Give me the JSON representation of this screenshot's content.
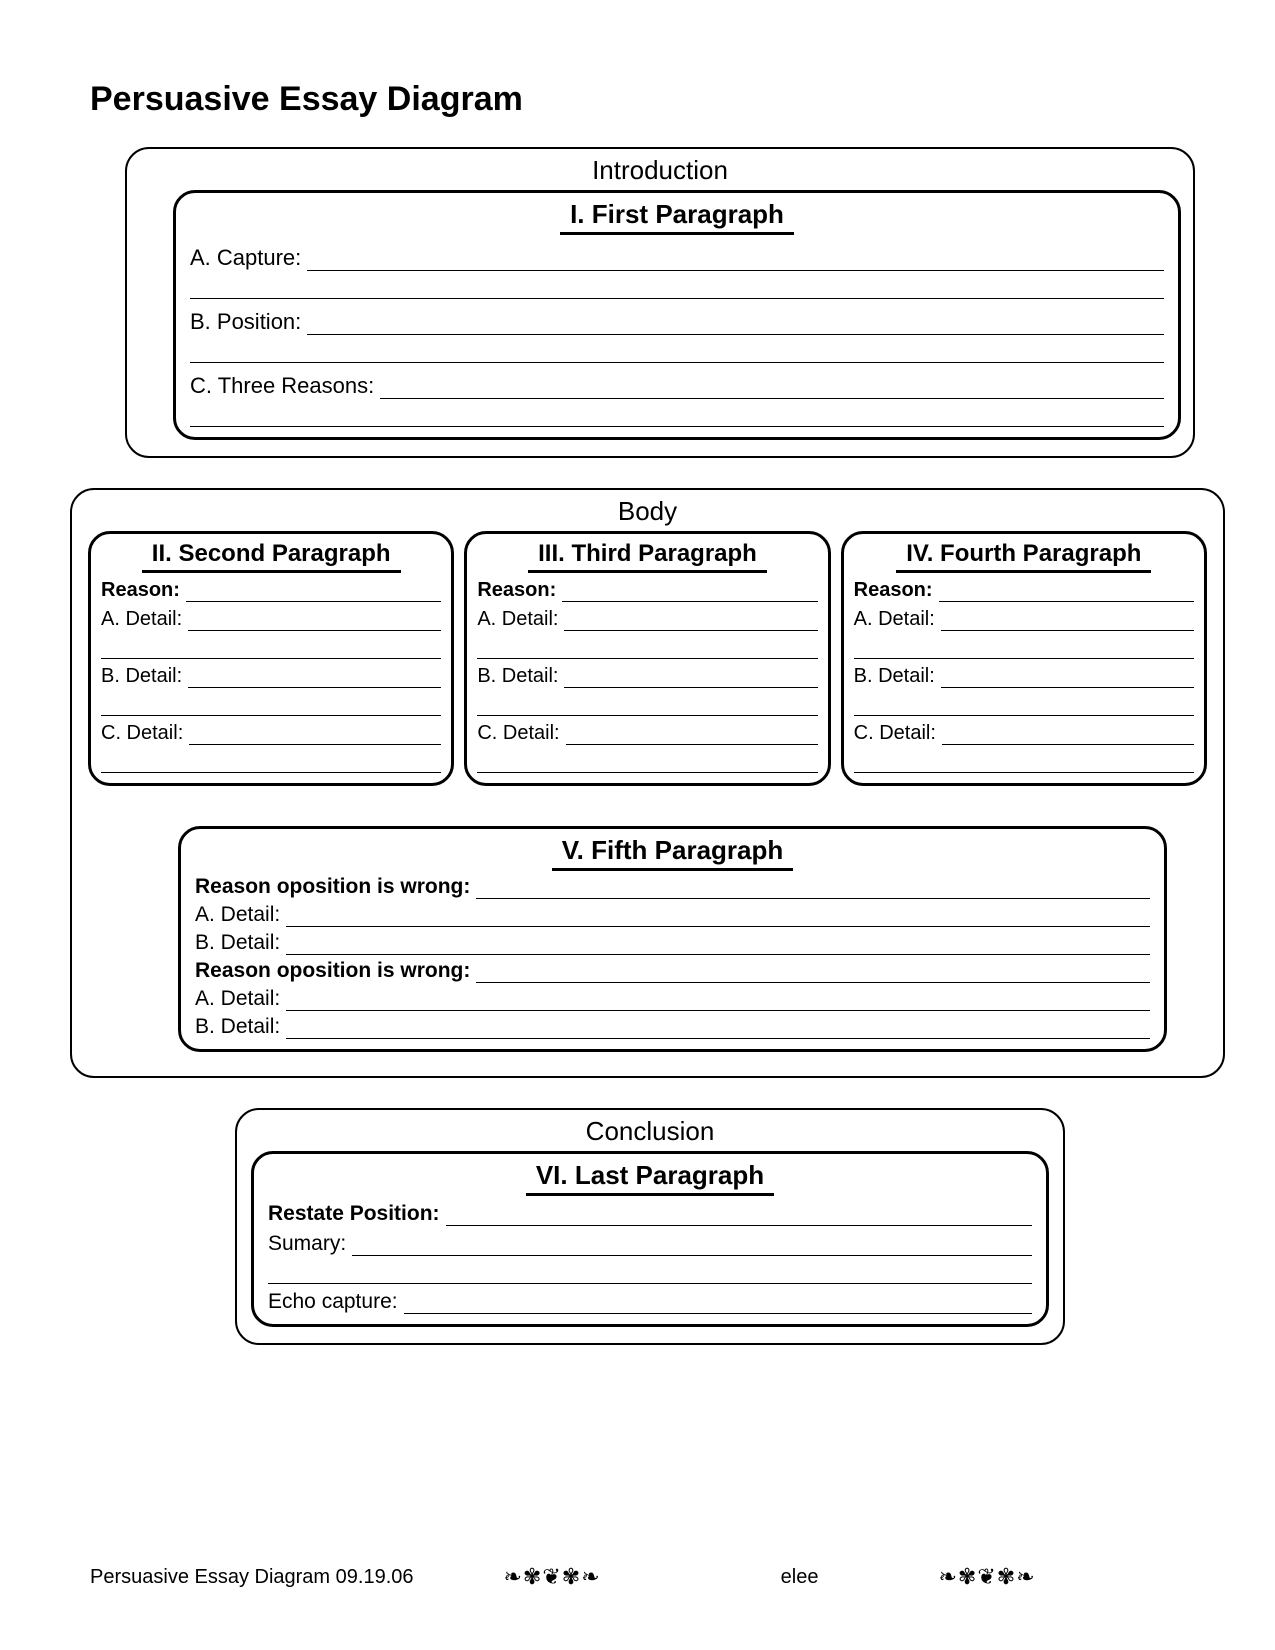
{
  "page_title": "Persuasive Essay Diagram",
  "font_family": "Comic Sans MS",
  "colors": {
    "text": "#000000",
    "bg": "#ffffff",
    "border": "#000000"
  },
  "sections": {
    "introduction": {
      "label": "Introduction",
      "paragraph": {
        "title": "I. First Paragraph",
        "fields": [
          {
            "label": "A. Capture:",
            "extra_blank_lines": 1
          },
          {
            "label": "B. Position:",
            "extra_blank_lines": 1
          },
          {
            "label": "C. Three Reasons:",
            "extra_blank_lines": 1
          }
        ]
      }
    },
    "body": {
      "label": "Body",
      "paragraphs_top": [
        {
          "title": "II. Second Paragraph",
          "fields": [
            {
              "label": "Reason:",
              "bold": true
            },
            {
              "label": "A. Detail:",
              "extra_blank_lines": 1
            },
            {
              "label": "B. Detail:",
              "extra_blank_lines": 1
            },
            {
              "label": "C. Detail:",
              "extra_blank_lines": 1
            }
          ]
        },
        {
          "title": "III. Third Paragraph",
          "fields": [
            {
              "label": "Reason:",
              "bold": true
            },
            {
              "label": "A. Detail:",
              "extra_blank_lines": 1
            },
            {
              "label": "B. Detail:",
              "extra_blank_lines": 1
            },
            {
              "label": "C. Detail:",
              "extra_blank_lines": 1
            }
          ]
        },
        {
          "title": "IV. Fourth Paragraph",
          "fields": [
            {
              "label": "Reason:",
              "bold": true
            },
            {
              "label": "A. Detail:",
              "extra_blank_lines": 1
            },
            {
              "label": "B. Detail:",
              "extra_blank_lines": 1
            },
            {
              "label": "C. Detail:",
              "extra_blank_lines": 1
            }
          ]
        }
      ],
      "paragraph_fifth": {
        "title": "V. Fifth Paragraph",
        "fields": [
          {
            "label": "Reason oposition is wrong:",
            "bold": true
          },
          {
            "label": "A.  Detail:"
          },
          {
            "label": "B.  Detail:"
          },
          {
            "label": "Reason oposition is wrong:",
            "bold": true
          },
          {
            "label": "A.  Detail:"
          },
          {
            "label": "B.  Detail:"
          }
        ]
      }
    },
    "conclusion": {
      "label": "Conclusion",
      "paragraph": {
        "title": "VI. Last Paragraph",
        "fields": [
          {
            "label": "Restate Position:",
            "bold": true
          },
          {
            "label": "Sumary:",
            "extra_blank_lines": 1
          },
          {
            "label": "Echo capture:"
          }
        ]
      }
    }
  },
  "footer": {
    "left": "Persuasive Essay Diagram  09.19.06",
    "ornament1": "❧✾❦✾❧",
    "mid": "elee",
    "ornament2": "❧✾❦✾❧"
  }
}
